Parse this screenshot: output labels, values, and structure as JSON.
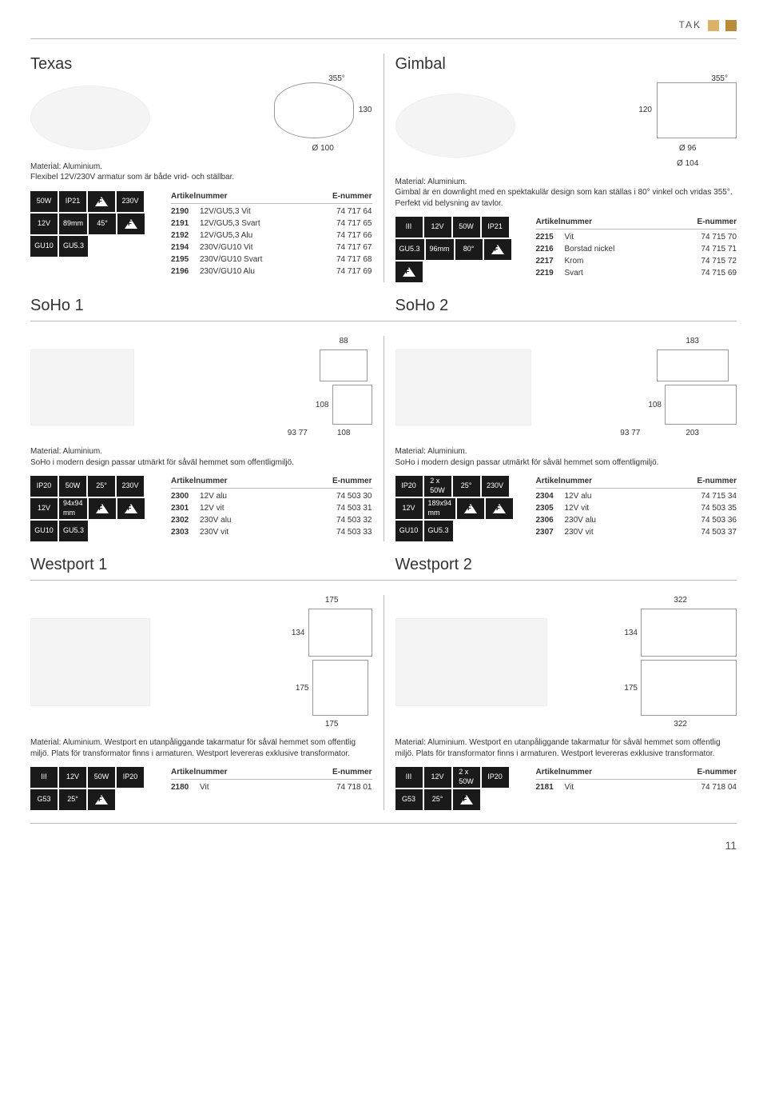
{
  "topbar_label": "TAK",
  "page_number": "11",
  "headers": {
    "art": "Artikelnummer",
    "enr": "E-nummer"
  },
  "material_label": "Material: Aluminium.",
  "texas": {
    "title": "Texas",
    "desc": "Flexibel 12V/230V armatur som är både vrid- och ställbar.",
    "dim_d": "Ø 100",
    "angle": "355°",
    "height": "130",
    "badges": [
      "50W",
      "IP21",
      "F",
      "230V",
      "12V",
      "89mm",
      "45°",
      "F",
      "GU10",
      "GU5.3"
    ],
    "rows": [
      {
        "n": "2190",
        "d": "12V/GU5,3 Vit",
        "e": "74 717 64"
      },
      {
        "n": "2191",
        "d": "12V/GU5,3 Svart",
        "e": "74 717 65"
      },
      {
        "n": "2192",
        "d": "12V/GU5,3 Alu",
        "e": "74 717 66"
      },
      {
        "n": "2194",
        "d": "230V/GU10 Vit",
        "e": "74 717 67"
      },
      {
        "n": "2195",
        "d": "230V/GU10 Svart",
        "e": "74 717 68"
      },
      {
        "n": "2196",
        "d": "230V/GU10 Alu",
        "e": "74 717 69"
      }
    ]
  },
  "gimbal": {
    "title": "Gimbal",
    "desc": "Gimbal är en downlight med en spektakulär design som kan ställas i 80° vinkel och vridas 355°. Perfekt vid belysning av tavlor.",
    "angle": "355°",
    "height": "120",
    "d1": "Ø 96",
    "d2": "Ø 104",
    "badges": [
      "III",
      "12V",
      "50W",
      "IP21",
      "GU5.3",
      "96mm",
      "80°",
      "F",
      "F"
    ],
    "rows": [
      {
        "n": "2215",
        "d": "Vit",
        "e": "74 715 70"
      },
      {
        "n": "2216",
        "d": "Borstad nickel",
        "e": "74 715 71"
      },
      {
        "n": "2217",
        "d": "Krom",
        "e": "74 715 72"
      },
      {
        "n": "2219",
        "d": "Svart",
        "e": "74 715 69"
      }
    ]
  },
  "soho1": {
    "title": "SoHo 1",
    "desc": "SoHo i modern design passar utmärkt för såväl hemmet som offentlig­miljö.",
    "dims": {
      "a": "88",
      "b": "93",
      "c": "77",
      "d": "108",
      "e": "108"
    },
    "badges": [
      "IP20",
      "50W",
      "25°",
      "230V",
      "12V",
      "94x94\nmm",
      "F",
      "F",
      "GU10",
      "GU5.3"
    ],
    "rows": [
      {
        "n": "2300",
        "d": "12V alu",
        "e": "74 503 30"
      },
      {
        "n": "2301",
        "d": "12V vit",
        "e": "74 503 31"
      },
      {
        "n": "2302",
        "d": "230V alu",
        "e": "74 503 32"
      },
      {
        "n": "2303",
        "d": "230V vit",
        "e": "74 503 33"
      }
    ]
  },
  "soho2": {
    "title": "SoHo 2",
    "desc": "SoHo i modern design passar utmärkt för såväl hemmet som offentlig­miljö.",
    "dims": {
      "a": "183",
      "b": "93",
      "c": "77",
      "d": "108",
      "e": "203"
    },
    "badges": [
      "IP20",
      "2 x\n50W",
      "25°",
      "230V",
      "12V",
      "189x94\nmm",
      "F",
      "F",
      "GU10",
      "GU5.3"
    ],
    "rows": [
      {
        "n": "2304",
        "d": "12V alu",
        "e": "74 715 34"
      },
      {
        "n": "2305",
        "d": "12V vit",
        "e": "74 503 35"
      },
      {
        "n": "2306",
        "d": "230V alu",
        "e": "74 503 36"
      },
      {
        "n": "2307",
        "d": "230V vit",
        "e": "74 503 37"
      }
    ]
  },
  "westport1": {
    "title": "Westport 1",
    "desc": "Material: Aluminium. Westport en utanpåliggande takarmatur för såväl hemmet som offentlig miljö. Plats för transformator finns i armaturen. Westport levereras exklusive transformator.",
    "dims": {
      "a": "175",
      "b": "134",
      "c": "175",
      "d": "175"
    },
    "badges": [
      "III",
      "12V",
      "50W",
      "IP20",
      "G53",
      "25°",
      "F"
    ],
    "rows": [
      {
        "n": "2180",
        "d": "Vit",
        "e": "74 718 01"
      }
    ]
  },
  "westport2": {
    "title": "Westport 2",
    "desc": "Material: Aluminium. Westport en utanpåliggande takarmatur för såväl hemmet som offentlig miljö. Plats för transformator finns i armaturen. Westport levereras exklusive transformator.",
    "dims": {
      "a": "322",
      "b": "134",
      "c": "175",
      "d": "322"
    },
    "badges": [
      "III",
      "12V",
      "2 x\n50W",
      "IP20",
      "G53",
      "25°",
      "F"
    ],
    "rows": [
      {
        "n": "2181",
        "d": "Vit",
        "e": "74 718 04"
      }
    ]
  }
}
